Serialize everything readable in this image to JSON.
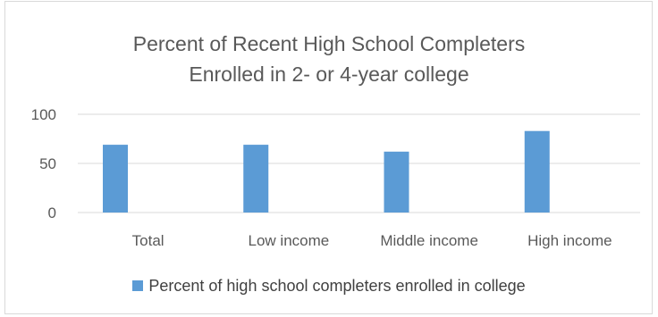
{
  "chart_data": {
    "type": "bar",
    "title": [
      "Percent of Recent High School Completers",
      "Enrolled in 2- or 4-year college"
    ],
    "categories": [
      "Total",
      "Low income",
      "Middle income",
      "High income"
    ],
    "series": [
      {
        "name": "Percent of high school completers enrolled in college",
        "values": [
          69,
          69,
          62,
          83
        ],
        "color": "#5b9bd5"
      }
    ],
    "ylim": [
      0,
      100
    ],
    "yticks": [
      "0",
      "50",
      "100"
    ],
    "grid": true,
    "legend_position": "bottom"
  }
}
